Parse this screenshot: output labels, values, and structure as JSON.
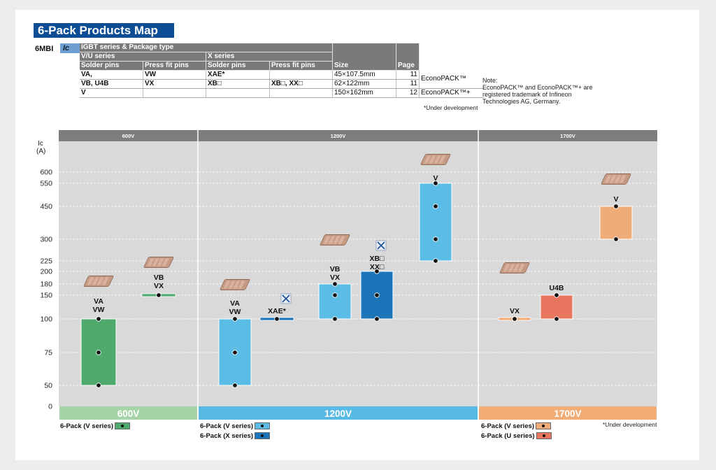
{
  "title": "6-Pack Products Map",
  "model_code": "6MBI",
  "ic_tag": "Ic",
  "package_table": {
    "header_main": "IGBT series & Package type",
    "header_vu": "V/U series",
    "header_x": "X series",
    "col_solder": "Solder pins",
    "col_press": "Press fit pins",
    "col_size": "Size",
    "col_page": "Page",
    "rows": [
      {
        "vu_solder": "VA,",
        "vu_press": "VW",
        "x_solder": "XAE*",
        "x_press": "",
        "size": "45×107.5mm",
        "page": "11",
        "pkg": ""
      },
      {
        "vu_solder": "VB, U4B",
        "vu_press": "VX",
        "x_solder": "XB□",
        "x_press": "XB□, XX□",
        "size": "62×122mm",
        "page": "11",
        "pkg": "EconoPACK™"
      },
      {
        "vu_solder": "V",
        "vu_press": "",
        "x_solder": "",
        "x_press": "",
        "size": "150×162mm",
        "page": "12",
        "pkg": "EconoPACK™+"
      }
    ]
  },
  "note": "Note:\nEconoPACK™ and EconoPACK™+ are\nregistered trademark of Infineon\nTechnologies AG, Germany.",
  "under_development": "*Under development",
  "legend": {
    "v600": "6-Pack (V series)",
    "v1200": "6-Pack (V series)",
    "x1200": "6-Pack (X series)",
    "v1700": "6-Pack (V series)",
    "u1700": "6-Pack (U series)"
  },
  "colors": {
    "title_bg": "#0d4d95",
    "v600": "#4faa6d",
    "v1200": "#5bbce6",
    "x1200": "#1c75b8",
    "v1700": "#f0ac78",
    "u1700": "#e8765e",
    "band600": "#a6d3a8",
    "band1200": "#58b9e4",
    "band1700": "#f2ad77",
    "plot_bg": "#d9d9d9",
    "header_bg": "#7d7d7d"
  },
  "chart_data": {
    "type": "bar",
    "ylabel": "Ic",
    "yunit": "(A)",
    "yticks": [
      "0",
      "50",
      "75",
      "100",
      "150",
      "180",
      "200",
      "225",
      "300",
      "450",
      "550",
      "600"
    ],
    "voltage_sections": [
      {
        "label": "600V",
        "band_label": "600V"
      },
      {
        "label": "1200V",
        "band_label": "1200V"
      },
      {
        "label": "1700V",
        "band_label": "1700V"
      }
    ],
    "series": [
      {
        "section": "600V",
        "labels": [
          "VA",
          "VW"
        ],
        "ranges": [
          50,
          100
        ],
        "points": [
          50,
          75,
          100
        ],
        "color_key": "v600",
        "icon": "module-small"
      },
      {
        "section": "600V",
        "labels": [
          "VB",
          "VX"
        ],
        "ranges": [
          150,
          150
        ],
        "points": [
          150
        ],
        "color_key": "v600",
        "icon": "module-medium"
      },
      {
        "section": "1200V",
        "labels": [
          "VA",
          "VW"
        ],
        "ranges": [
          50,
          100
        ],
        "points": [
          50,
          75,
          100
        ],
        "color_key": "v1200",
        "icon": "module-small"
      },
      {
        "section": "1200V",
        "labels": [
          "XAE*"
        ],
        "ranges": [
          100,
          100
        ],
        "points": [
          100
        ],
        "color_key": "x1200",
        "icon": "under-development-mark"
      },
      {
        "section": "1200V",
        "labels": [
          "VB",
          "VX"
        ],
        "ranges": [
          100,
          180
        ],
        "points": [
          100,
          150,
          180
        ],
        "color_key": "v1200",
        "icon": "module-medium"
      },
      {
        "section": "1200V",
        "labels": [
          "XB□",
          "XX□"
        ],
        "ranges": [
          100,
          200
        ],
        "points": [
          100,
          150,
          200
        ],
        "color_key": "x1200",
        "icon": "under-development-mark"
      },
      {
        "section": "1200V",
        "labels": [
          "V"
        ],
        "ranges": [
          225,
          550
        ],
        "points": [
          225,
          300,
          450,
          550
        ],
        "color_key": "v1200",
        "icon": "module-large"
      },
      {
        "section": "1700V",
        "labels": [
          "VX"
        ],
        "ranges": [
          100,
          100
        ],
        "points": [
          100
        ],
        "color_key": "v1700",
        "icon": "module-medium"
      },
      {
        "section": "1700V",
        "labels": [
          "U4B"
        ],
        "ranges": [
          100,
          150
        ],
        "points": [
          100,
          150
        ],
        "color_key": "u1700",
        "icon": ""
      },
      {
        "section": "1700V",
        "labels": [
          "V"
        ],
        "ranges": [
          300,
          450
        ],
        "points": [
          300,
          450
        ],
        "color_key": "v1700",
        "icon": "module-large"
      }
    ]
  }
}
